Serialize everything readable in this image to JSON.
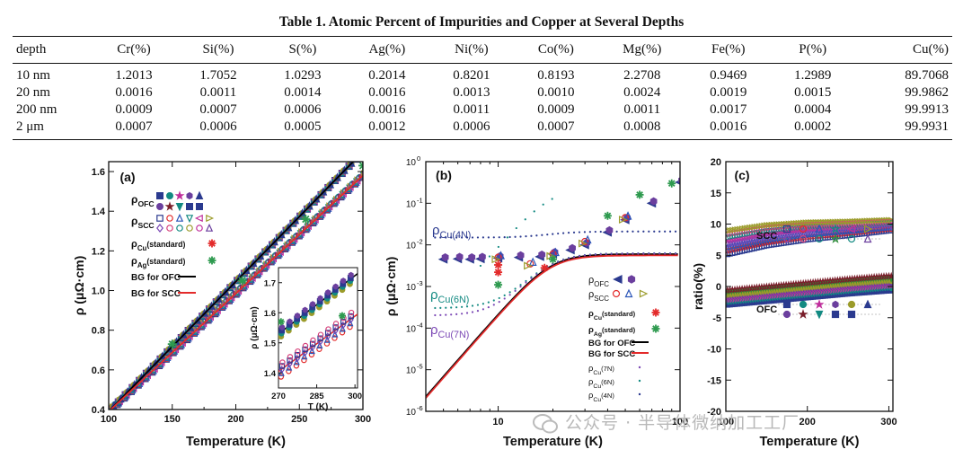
{
  "table": {
    "caption": "Table 1.  Atomic Percent of Impurities and Copper at Several Depths",
    "headers": [
      "depth",
      "Cr(%)",
      "Si(%)",
      "S(%)",
      "Ag(%)",
      "Ni(%)",
      "Co(%)",
      "Mg(%)",
      "Fe(%)",
      "P(%)",
      "Cu(%)"
    ],
    "rows": [
      [
        "10 nm",
        "1.2013",
        "1.7052",
        "1.0293",
        "0.2014",
        "0.8201",
        "0.8193",
        "2.2708",
        "0.9469",
        "1.2989",
        "89.7068"
      ],
      [
        "20 nm",
        "0.0016",
        "0.0011",
        "0.0014",
        "0.0016",
        "0.0013",
        "0.0010",
        "0.0024",
        "0.0019",
        "0.0015",
        "99.9862"
      ],
      [
        "200 nm",
        "0.0009",
        "0.0007",
        "0.0006",
        "0.0016",
        "0.0011",
        "0.0009",
        "0.0011",
        "0.0017",
        "0.0004",
        "99.9913"
      ],
      [
        "2 μm",
        "0.0007",
        "0.0006",
        "0.0005",
        "0.0012",
        "0.0006",
        "0.0007",
        "0.0008",
        "0.0016",
        "0.0002",
        "99.9931"
      ]
    ]
  },
  "chart_data": [
    {
      "type": "scatter",
      "panel": "(a)",
      "xlabel": "Temperature (K)",
      "ylabel": "ρ (μΩ·cm)",
      "xlim": [
        100,
        300
      ],
      "ylim": [
        0.4,
        1.65
      ],
      "xticks": [
        "100",
        "150",
        "200",
        "250",
        "300"
      ],
      "yticks": [
        "0.4",
        "0.6",
        "0.8",
        "1.0",
        "1.2",
        "1.4",
        "1.6"
      ],
      "legend": {
        "ofc": "ρ",
        "ofc_sub": "OFC",
        "scc": "ρ",
        "scc_sub": "SCC",
        "cu_std": "ρ",
        "cu_std_sub": "Cu",
        "cu_std_tail": "(standard)",
        "ag_std": "ρ",
        "ag_std_sub": "Ag",
        "ag_std_tail": "(standard)",
        "bg_ofc": "BG for OFC",
        "bg_scc": "BG for SCC"
      },
      "series": [
        {
          "name": "BG for OFC",
          "x": [
            100,
            300
          ],
          "y": [
            0.39,
            1.7
          ]
        },
        {
          "name": "BG for SCC",
          "x": [
            100,
            300
          ],
          "y": [
            0.39,
            1.58
          ]
        },
        {
          "name": "ρOFC",
          "x": [
            110,
            130,
            150,
            170,
            190,
            210,
            230,
            250,
            270,
            290
          ],
          "y": [
            0.45,
            0.58,
            0.71,
            0.84,
            0.97,
            1.1,
            1.23,
            1.36,
            1.5,
            1.63
          ]
        },
        {
          "name": "ρSCC",
          "x": [
            110,
            130,
            150,
            170,
            190,
            210,
            230,
            250,
            270,
            290
          ],
          "y": [
            0.45,
            0.57,
            0.69,
            0.81,
            0.93,
            1.05,
            1.17,
            1.28,
            1.4,
            1.52
          ]
        },
        {
          "name": "ρAg(standard)",
          "x": [
            150,
            205,
            255,
            300
          ],
          "y": [
            0.73,
            1.05,
            1.36,
            1.63
          ]
        }
      ],
      "inset": {
        "xlabel": "T (K)",
        "ylabel": "ρ (μΩ·cm)",
        "xlim": [
          270,
          301
        ],
        "ylim": [
          1.35,
          1.75
        ],
        "xticks": [
          "270",
          "285",
          "300"
        ],
        "yticks": [
          "1.4",
          "1.5",
          "1.6",
          "1.7"
        ]
      }
    },
    {
      "type": "scatter",
      "panel": "(b)",
      "xscale": "log",
      "yscale": "log",
      "xlabel": "Temperature (K)",
      "ylabel": "ρ (μΩ·cm)",
      "xlim": [
        4,
        100
      ],
      "ylim": [
        1e-06,
        1
      ],
      "xticks": [
        "10",
        "100"
      ],
      "yticks": [
        "10",
        "10",
        "10",
        "10",
        "10",
        "10",
        "10"
      ],
      "yexps": [
        "-6",
        "-5",
        "-4",
        "-3",
        "-2",
        "-1",
        "0"
      ],
      "curve_labels": {
        "cu4n": "ρ",
        "cu4n_sub": "Cu(4N)",
        "cu6n": "ρ",
        "cu6n_sub": "Cu(6N)",
        "cu7n": "ρ",
        "cu7n_sub": "Cu(7N)"
      },
      "legend": {
        "ofc": "ρ",
        "ofc_sub": "OFC",
        "scc": "ρ",
        "scc_sub": "SCC",
        "cu_std": "ρ",
        "cu_std_sub": "Cu",
        "cu_std_tail": "(standard)",
        "ag_std": "ρ",
        "ag_std_sub": "Ag",
        "ag_std_tail": "(standard)",
        "bg_ofc": "BG for OFC",
        "bg_scc": "BG for SCC",
        "cu7n": "ρ",
        "cu7n_sub": "Cu",
        "cu7n_tail": "(7N)",
        "cu6n": "ρ",
        "cu6n_sub": "Cu",
        "cu6n_tail": "(6N)",
        "cu4n": "ρ",
        "cu4n_sub": "Cu",
        "cu4n_tail": "(4N)"
      },
      "series": [
        {
          "name": "ρOFC",
          "x": [
            5,
            6,
            7,
            8,
            10,
            13,
            17,
            20,
            25,
            30,
            40,
            50,
            70,
            100
          ],
          "y": [
            0.0045,
            0.0046,
            0.0045,
            0.0046,
            0.0048,
            0.005,
            0.0052,
            0.006,
            0.0075,
            0.01,
            0.02,
            0.04,
            0.1,
            0.32
          ]
        },
        {
          "name": "ρCu(standard)",
          "x": [
            10,
            10,
            18
          ],
          "y": [
            0.0022,
            0.0033,
            0.0028
          ]
        },
        {
          "name": "ρAg(standard)",
          "x": [
            10,
            20,
            40,
            60,
            90
          ],
          "y": [
            0.0011,
            0.0045,
            0.05,
            0.16,
            0.3
          ]
        }
      ]
    },
    {
      "type": "scatter",
      "panel": "(c)",
      "xlabel": "Temperature (K)",
      "ylabel": "ratio(%)",
      "xlim": [
        100,
        305
      ],
      "ylim": [
        -20,
        20
      ],
      "xticks": [
        "100",
        "200",
        "300"
      ],
      "yticks": [
        "-20",
        "-15",
        "-10",
        "-5",
        "0",
        "5",
        "10",
        "15",
        "20"
      ],
      "legend": {
        "scc": "SCC",
        "ofc": "OFC"
      },
      "series": [
        {
          "name": "SCC",
          "x": [
            100,
            150,
            200,
            250,
            300
          ],
          "y": [
            7,
            8.2,
            8.9,
            9.3,
            9.8
          ]
        },
        {
          "name": "OFC",
          "x": [
            100,
            150,
            200,
            250,
            300
          ],
          "y": [
            -1.8,
            -1.2,
            -0.6,
            0,
            0.5
          ]
        }
      ]
    }
  ],
  "watermark": "公众号 · 半导体微纳加工工厂"
}
